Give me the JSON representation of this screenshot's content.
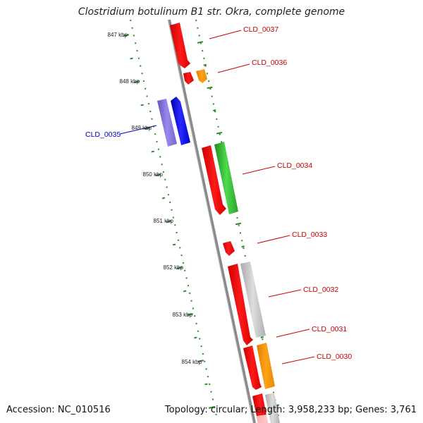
{
  "title": "Clostridium botulinum B1 str. Okra, complete genome",
  "footer": {
    "accession": "Accession: NC_010516",
    "summary": "Topology: circular; Length: 3,958,233 bp; Genes: 3,761"
  },
  "ruler": {
    "ticks": [
      "847 kbp",
      "848 kbp",
      "849 kbp",
      "850 kbp",
      "851 kbp",
      "852 kbp",
      "853 kbp",
      "854 kbp"
    ]
  },
  "genes": [
    {
      "id": "CLD_0037",
      "label": "CLD_0037",
      "color": "#ff0000"
    },
    {
      "id": "CLD_0036",
      "label": "CLD_0036",
      "color": "#ff9900"
    },
    {
      "id": "CLD_0035",
      "label": "CLD_0035",
      "color": "#0000ff"
    },
    {
      "id": "CLD_0034",
      "label": "CLD_0034",
      "color": "#33cc33"
    },
    {
      "id": "CLD_0033",
      "label": "CLD_0033",
      "color": "#ff0000"
    },
    {
      "id": "CLD_0032",
      "label": "CLD_0032",
      "color": "#bbbbbb"
    },
    {
      "id": "CLD_0031",
      "label": "CLD_0031",
      "color": "#ff0000"
    },
    {
      "id": "CLD_0030",
      "label": "CLD_0030",
      "color": "#ff9900"
    }
  ],
  "colors": {
    "backbone": "#888888",
    "ruler": "#228822",
    "label_red": "#cc0000",
    "label_blue": "#0000cc"
  }
}
